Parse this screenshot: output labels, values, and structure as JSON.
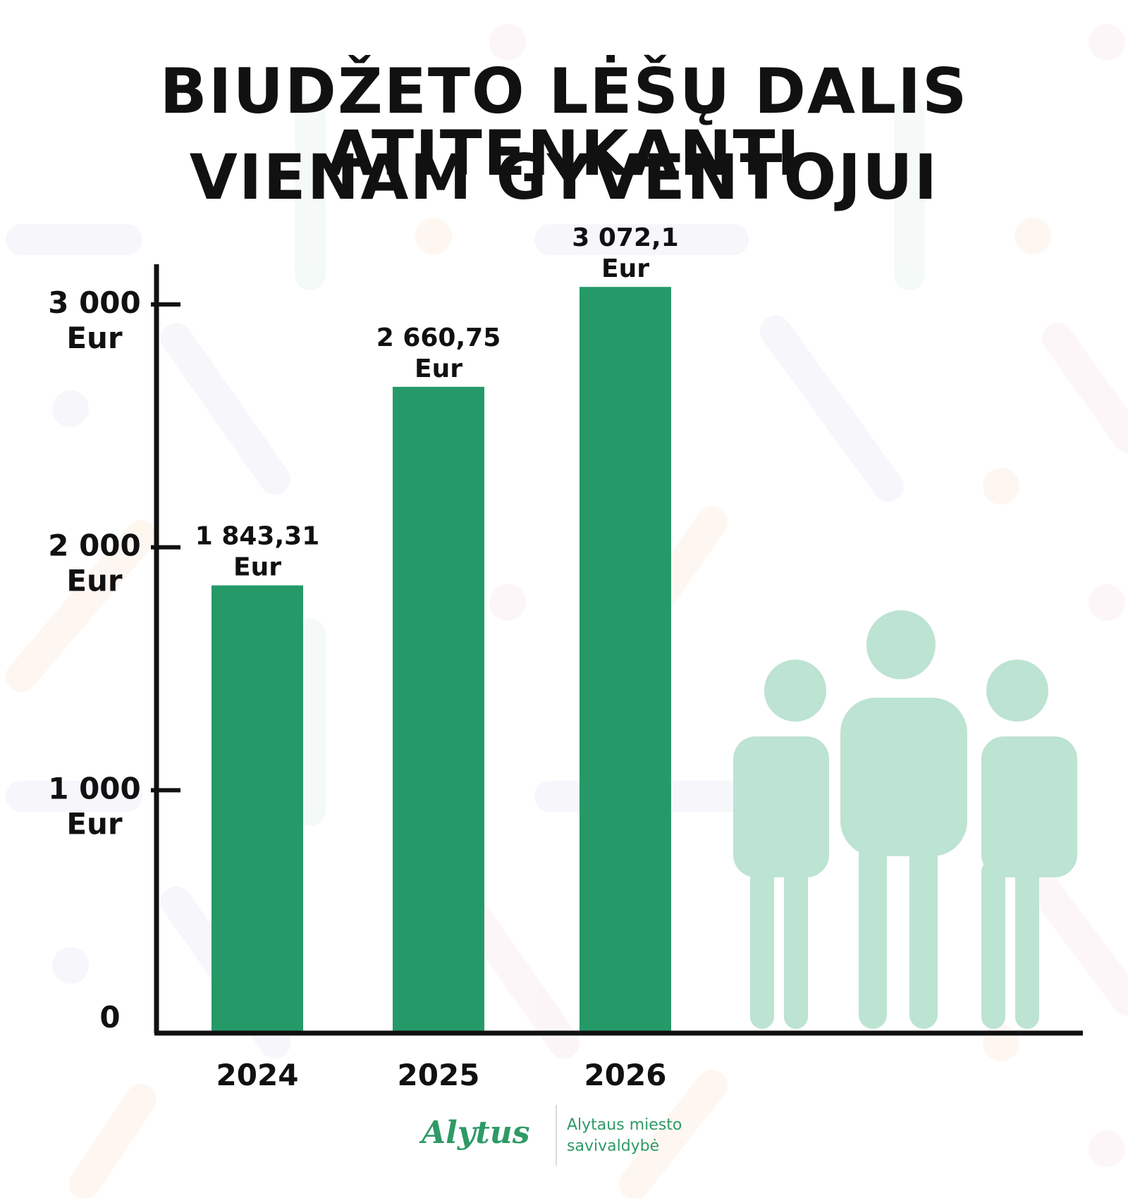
{
  "header": {
    "title_line1": "BIUDŽETO LĖŠŲ DALIS ATITENKANTI",
    "title_line2": "VIENAM GYVENTOJUI"
  },
  "chart_data": {
    "type": "bar",
    "title": "BIUDŽETO LĖŠŲ DALIS ATITENKANTI VIENAM GYVENTOJUI",
    "categories": [
      "2024",
      "2025",
      "2026"
    ],
    "values": [
      1843.31,
      2660.75,
      3072.1
    ],
    "value_labels": [
      {
        "value": "1 843,31",
        "unit": "Eur"
      },
      {
        "value": "2 660,75",
        "unit": "Eur"
      },
      {
        "value": "3 072,1",
        "unit": "Eur"
      }
    ],
    "yticks": [
      {
        "value": 0,
        "label": "0",
        "unit": ""
      },
      {
        "value": 1000,
        "label": "1 000",
        "unit": "Eur"
      },
      {
        "value": 2000,
        "label": "2 000",
        "unit": "Eur"
      },
      {
        "value": 3000,
        "label": "3 000",
        "unit": "Eur"
      }
    ],
    "ylim": [
      0,
      3000
    ],
    "xlabel": "",
    "ylabel": "",
    "grid": false,
    "legend": "none",
    "bar_color": "#259a68"
  },
  "colors": {
    "bar": "#259a68",
    "people": "#bde3d2",
    "axis": "#111111",
    "brand": "#2e9a66"
  },
  "illustration": {
    "icon": "people-group-icon"
  },
  "footer": {
    "logo_mark": "Alytus",
    "logo_line1": "Alytaus miesto",
    "logo_line2": "savivaldybė"
  }
}
